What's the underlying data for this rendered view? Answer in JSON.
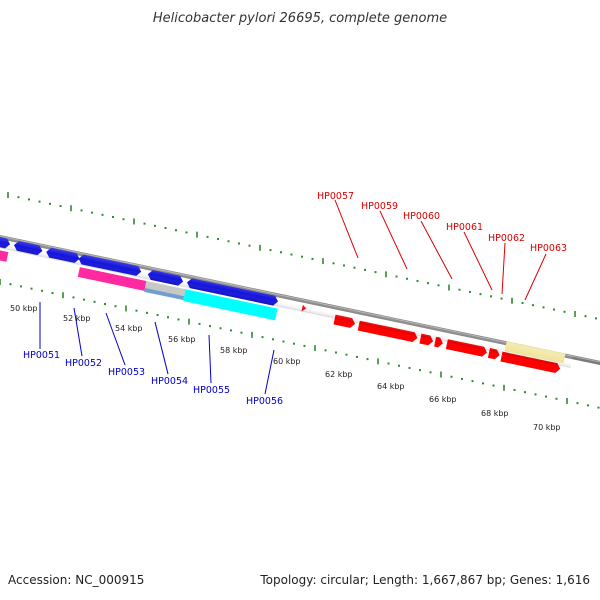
{
  "title": "Helicobacter pylori 26695, complete genome",
  "footer": {
    "accession": "Accession: NC_000915",
    "summary": "Topology: circular; Length: 1,667,867 bp; Genes: 1,616"
  },
  "colors": {
    "backbone": "#7a7a7a",
    "tick": "#2e8b2e",
    "label_blue": "#0000cc",
    "label_red": "#dd0000",
    "gene_blue": "#1414dd",
    "gene_red": "#ff0000",
    "gene_pink": "#ff2aa0",
    "gene_cyan": "#00ffff",
    "gene_gray": "#c8c8c8",
    "gene_steel": "#6e9fd0",
    "gene_khaki": "#f1e6a0"
  },
  "ruler": {
    "labels": [
      "50 kbp",
      "52 kbp",
      "54 kbp",
      "56 kbp",
      "58 kbp",
      "60 kbp",
      "62 kbp",
      "64 kbp",
      "66 kbp",
      "68 kbp",
      "70 kbp"
    ]
  },
  "gene_labels": [
    {
      "text": "HP0051",
      "color": "blue"
    },
    {
      "text": "HP0052",
      "color": "blue"
    },
    {
      "text": "HP0053",
      "color": "blue"
    },
    {
      "text": "HP0054",
      "color": "blue"
    },
    {
      "text": "HP0055",
      "color": "blue"
    },
    {
      "text": "HP0056",
      "color": "blue"
    },
    {
      "text": "HP0057",
      "color": "red"
    },
    {
      "text": "HP0059",
      "color": "red"
    },
    {
      "text": "HP0060",
      "color": "red"
    },
    {
      "text": "HP0061",
      "color": "red"
    },
    {
      "text": "HP0062",
      "color": "red"
    },
    {
      "text": "HP0063",
      "color": "red"
    }
  ]
}
